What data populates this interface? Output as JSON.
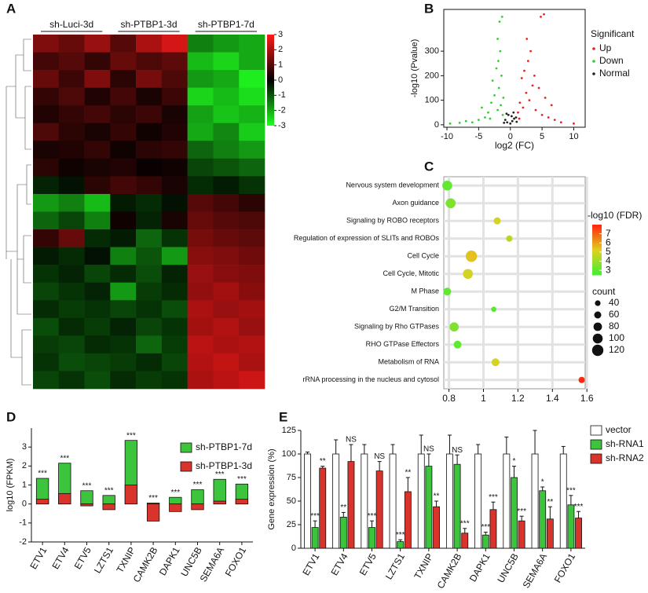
{
  "chart_data": [
    {
      "type": "heatmap",
      "panel": "A",
      "groups": [
        "sh-Luci-3d",
        "sh-PTBP1-3d",
        "sh-PTBP1-7d"
      ],
      "colorscale": [
        "#20ff20",
        "#000000",
        "#ff1a1a"
      ],
      "zlim": [
        -3,
        3
      ],
      "zticks": [
        3,
        2,
        1,
        0,
        -1,
        -2,
        -3
      ],
      "values": [
        [
          1.5,
          1.2,
          1.8,
          1.0,
          2.0,
          2.5,
          -1.5,
          -1.8,
          -2.0
        ],
        [
          0.8,
          1.0,
          0.6,
          1.2,
          0.9,
          1.1,
          -2.2,
          -2.5,
          -2.0
        ],
        [
          1.2,
          0.7,
          1.5,
          0.5,
          1.4,
          0.9,
          -1.8,
          -2.0,
          -2.8
        ],
        [
          0.6,
          0.9,
          0.4,
          0.8,
          0.3,
          0.7,
          -2.5,
          -2.2,
          -2.6
        ],
        [
          0.4,
          0.6,
          0.8,
          0.5,
          0.7,
          0.3,
          -1.9,
          -2.3,
          -2.1
        ],
        [
          0.9,
          0.5,
          0.3,
          0.6,
          0.2,
          0.4,
          -2.0,
          -1.6,
          -2.4
        ],
        [
          0.3,
          0.4,
          0.6,
          0.2,
          0.5,
          0.6,
          -1.2,
          -1.5,
          -1.8
        ],
        [
          0.5,
          0.2,
          0.3,
          0.4,
          0.1,
          0.2,
          -0.8,
          -1.0,
          -1.2
        ],
        [
          -0.4,
          -0.2,
          0.5,
          0.8,
          0.6,
          0.3,
          -0.5,
          -0.3,
          -0.6
        ],
        [
          -1.8,
          -1.5,
          -2.2,
          -0.3,
          -0.5,
          -0.2,
          1.0,
          0.8,
          0.5
        ],
        [
          -1.2,
          -0.8,
          -1.5,
          0.2,
          -0.4,
          0.3,
          1.2,
          1.0,
          0.9
        ],
        [
          0.6,
          1.2,
          -0.5,
          -0.3,
          -1.2,
          -0.6,
          1.4,
          1.2,
          1.1
        ],
        [
          -0.3,
          -0.5,
          -0.2,
          -1.5,
          -1.0,
          -1.8,
          1.6,
          1.5,
          1.3
        ],
        [
          -0.6,
          -0.4,
          -0.8,
          -0.5,
          -0.9,
          -0.4,
          1.8,
          1.6,
          1.5
        ],
        [
          -0.8,
          -0.6,
          -0.4,
          -1.8,
          -0.7,
          -0.5,
          1.7,
          1.9,
          1.6
        ],
        [
          -0.5,
          -0.7,
          -0.6,
          -0.8,
          -0.6,
          -0.9,
          2.0,
          1.8,
          1.9
        ],
        [
          -0.9,
          -0.5,
          -0.7,
          -0.4,
          -0.8,
          -0.6,
          1.9,
          2.1,
          1.8
        ],
        [
          -0.7,
          -0.8,
          -0.5,
          -0.6,
          -1.2,
          -0.7,
          2.2,
          2.0,
          2.1
        ],
        [
          -0.6,
          -0.9,
          -0.8,
          -0.7,
          -0.5,
          -0.8,
          2.1,
          2.3,
          2.0
        ],
        [
          -0.8,
          -0.6,
          -0.9,
          -0.5,
          -0.7,
          -0.6,
          2.0,
          2.2,
          2.4
        ]
      ]
    },
    {
      "type": "scatter",
      "panel": "B",
      "xlabel": "log2 (FC)",
      "ylabel": "-log10 (Pvalue)",
      "legend_title": "Significant",
      "xlim": [
        -10.5,
        11.8
      ],
      "xticks": [
        -10,
        -5,
        0,
        5,
        10
      ],
      "ylim": [
        -10,
        470
      ],
      "yticks": [
        0,
        100,
        200,
        300
      ],
      "series": [
        {
          "name": "Up",
          "color": "#e8231f",
          "x": [
            1.2,
            1.5,
            2,
            2.5,
            3,
            3.5,
            4,
            2.2,
            1.8,
            2.8,
            3.2,
            4.5,
            5,
            6,
            7,
            8,
            10,
            4.8,
            5.3,
            2.6,
            1.4,
            3.8,
            6.5,
            5.5
          ],
          "values": [
            50,
            90,
            70,
            130,
            100,
            160,
            60,
            220,
            190,
            260,
            300,
            150,
            40,
            30,
            20,
            10,
            5,
            440,
            450,
            350,
            25,
            200,
            80,
            110
          ]
        },
        {
          "name": "Down",
          "color": "#33cc33",
          "x": [
            -1.2,
            -1.5,
            -2,
            -2.5,
            -1.8,
            -3,
            -1.4,
            -2.2,
            -1.6,
            -1.3,
            -3.5,
            -4,
            -5,
            -2.8,
            -1.1,
            -6,
            -8,
            -9.5,
            -7,
            -2,
            -1.7,
            -4.5,
            -3.2,
            -1.9
          ],
          "values": [
            40,
            80,
            60,
            120,
            150,
            90,
            200,
            230,
            300,
            440,
            50,
            30,
            20,
            180,
            110,
            10,
            8,
            5,
            15,
            350,
            420,
            70,
            25,
            260
          ]
        },
        {
          "name": "Normal",
          "color": "#222222",
          "x": [
            -0.8,
            -0.5,
            0,
            0.3,
            0.6,
            0.9,
            -0.3,
            0.2,
            -1,
            1,
            0.5,
            -0.6
          ],
          "values": [
            20,
            10,
            5,
            15,
            25,
            30,
            40,
            35,
            8,
            12,
            50,
            45
          ]
        }
      ]
    },
    {
      "type": "bubble",
      "panel": "C",
      "categories": [
        "Nervous system development",
        "Axon guidance",
        "Signaling by ROBO receptors",
        "Regulation of expression of SLITs and ROBOs",
        "Cell Cycle",
        "Cell Cycle, Mitotic",
        "M Phase",
        "G2/M Transition",
        "Signaling by Rho GTPases",
        "RHO GTPase Effectors",
        "Metabolism of RNA",
        "rRNA processing in the nucleus and cytosol"
      ],
      "values": [
        0.79,
        0.81,
        1.08,
        1.15,
        0.93,
        0.91,
        0.79,
        1.06,
        0.83,
        0.85,
        1.07,
        1.57
      ],
      "count": [
        100,
        100,
        60,
        50,
        120,
        100,
        70,
        35,
        90,
        70,
        70,
        50
      ],
      "fdr": [
        3,
        3.5,
        5,
        4.5,
        5.5,
        5,
        3,
        2.8,
        3.5,
        3,
        5,
        8
      ],
      "xlim": [
        0.77,
        1.59
      ],
      "xticks": [
        0.8,
        1.0,
        1.2,
        1.4,
        1.6
      ],
      "color_title": "-log10 (FDR)",
      "colorscale": [
        "#44ee33",
        "#e0d020",
        "#ff2a10"
      ],
      "fdrlim": [
        2.5,
        8
      ],
      "fdrticks": [
        7,
        6,
        5,
        4,
        3
      ],
      "size_title": "count",
      "size_ticks": [
        40,
        60,
        80,
        100,
        120
      ],
      "grid": true
    },
    {
      "type": "bar",
      "panel": "D",
      "barmode": "overlay",
      "ylabel": "log10 (FPKM)",
      "categories": [
        "ETV1",
        "ETV4",
        "ETV5",
        "LZTS1",
        "TXNIP",
        "CAMK2B",
        "DAPK1",
        "UNC5B",
        "SEMA6A",
        "FOXO1"
      ],
      "annotations": [
        "***",
        "***",
        "***",
        "***",
        "***",
        "***",
        "***",
        "***",
        "***",
        "***"
      ],
      "ylim": [
        -2,
        4
      ],
      "yticks": [
        -2,
        -1,
        0,
        1,
        2,
        3
      ],
      "series": [
        {
          "name": "sh-PTBP1-7d",
          "color": "#3cc43c",
          "values": [
            1.35,
            2.15,
            0.7,
            0.45,
            3.35,
            0.05,
            0.35,
            0.75,
            1.3,
            1.05
          ]
        },
        {
          "name": "sh-PTBP1-3d",
          "color": "#d9342b",
          "values": [
            0.25,
            0.55,
            -0.1,
            -0.3,
            1.0,
            -0.9,
            -0.4,
            -0.3,
            0.15,
            0.25
          ]
        }
      ]
    },
    {
      "type": "bar",
      "panel": "E",
      "barmode": "group",
      "ylabel": "Gene expression (%)",
      "categories": [
        "ETV1",
        "ETV4",
        "ETV5",
        "LZTS1",
        "TXNIP",
        "CAMK2B",
        "DAPK1",
        "UNC5B",
        "SEMA6A",
        "FOXO1"
      ],
      "ylim": [
        0,
        125
      ],
      "yticks": [
        0,
        25,
        50,
        75,
        100,
        125
      ],
      "series": [
        {
          "name": "vector",
          "color": "#ffffff",
          "values": [
            100,
            100,
            100,
            100,
            100,
            100,
            100,
            100,
            100,
            100
          ],
          "errors": [
            2,
            15,
            10,
            10,
            20,
            20,
            10,
            18,
            25,
            8
          ]
        },
        {
          "name": "sh-RNA1",
          "color": "#3cc43c",
          "values": [
            22,
            33,
            22,
            7,
            87,
            89,
            14,
            75,
            61,
            46
          ],
          "errors": [
            7,
            5,
            7,
            2,
            13,
            10,
            3,
            12,
            4,
            10
          ],
          "annotations": [
            "***",
            "**",
            "***",
            "***",
            "NS",
            "NS",
            "***",
            "*",
            "*",
            "***"
          ]
        },
        {
          "name": "sh-RNA2",
          "color": "#d9342b",
          "values": [
            85,
            92,
            82,
            60,
            44,
            16,
            41,
            29,
            31,
            32
          ],
          "errors": [
            2,
            18,
            10,
            15,
            6,
            5,
            8,
            5,
            13,
            7
          ],
          "annotations": [
            "**",
            "NS",
            "NS",
            "**",
            "**",
            "***",
            "***",
            "***",
            "**",
            "***"
          ]
        }
      ]
    }
  ]
}
